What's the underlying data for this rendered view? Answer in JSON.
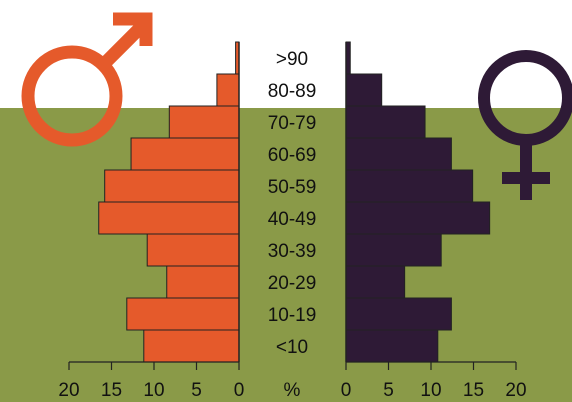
{
  "colors": {
    "background_top": "#ffffff",
    "background": "#8a9a48",
    "male": "#e55a2b",
    "female": "#2e1a36",
    "outline": "#222222",
    "text": "#111111"
  },
  "icons": {
    "left": "male-symbol-icon",
    "right": "female-symbol-icon"
  },
  "chart_data": {
    "type": "bar",
    "orientation": "horizontal-population-pyramid",
    "categories": [
      "<10",
      "10-19",
      "20-29",
      "30-39",
      "40-49",
      "50-59",
      "60-69",
      "70-79",
      "80-89",
      ">90"
    ],
    "series": [
      {
        "values": [
          11.2,
          13.2,
          8.5,
          10.8,
          16.5,
          15.8,
          12.7,
          8.2,
          2.6,
          0.4
        ]
      },
      {
        "values": [
          10.8,
          12.4,
          6.9,
          11.2,
          16.9,
          14.9,
          12.4,
          9.3,
          4.2,
          0.5
        ]
      }
    ],
    "center_label": "%",
    "x_ticks_left": [
      "20",
      "15",
      "10",
      "5",
      "0"
    ],
    "x_ticks_right": [
      "0",
      "5",
      "10",
      "15",
      "20"
    ],
    "xlim": [
      0,
      20
    ],
    "grid": false
  }
}
